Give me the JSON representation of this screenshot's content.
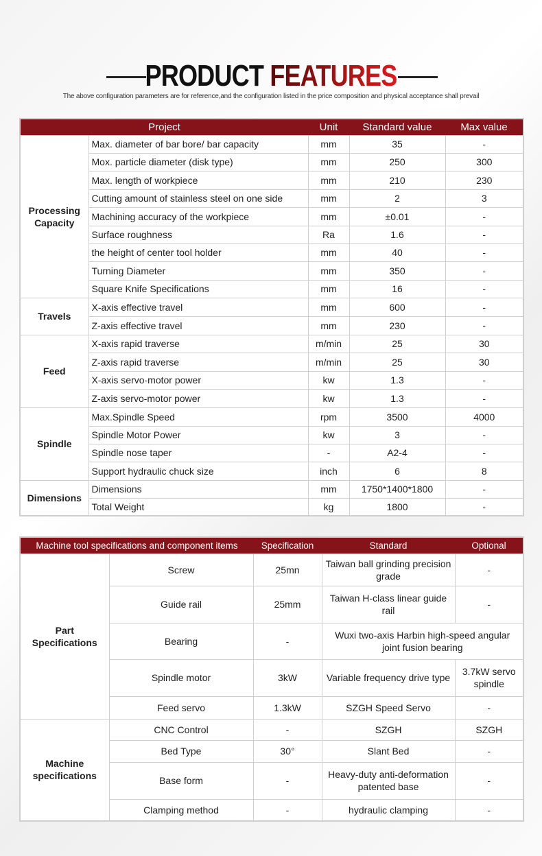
{
  "header": {
    "title_part1": "PRODUCT",
    "title_part2": "FEATURES",
    "subtitle": "The above configuration parameters are for reference,and the configuration listed in the price composition and physical acceptance shall prevail"
  },
  "colors": {
    "header_bg": "#86131a",
    "border": "#cfcfcf"
  },
  "table1": {
    "headers": [
      "Project",
      "Unit",
      "Standard value",
      "Max value"
    ],
    "groups": [
      {
        "name": "Processing Capacity",
        "rows": [
          [
            "Max. diameter of bar bore/ bar capacity",
            "mm",
            "35",
            "-"
          ],
          [
            "Mox. particle diameter (disk type)",
            "mm",
            "250",
            "300"
          ],
          [
            "Max. length of workpiece",
            "mm",
            "210",
            "230"
          ],
          [
            "Cutting amount of stainless steel on one side",
            "mm",
            "2",
            "3"
          ],
          [
            "Machining accuracy of the workpiece",
            "mm",
            "±0.01",
            "-"
          ],
          [
            "Surface roughness",
            "Ra",
            "1.6",
            "-"
          ],
          [
            "the height of center tool holder",
            "mm",
            "40",
            "-"
          ],
          [
            "Turning Diameter",
            "mm",
            "350",
            "-"
          ],
          [
            "Square Knife Specifications",
            "mm",
            "16",
            "-"
          ]
        ]
      },
      {
        "name": "Travels",
        "rows": [
          [
            "X-axis effective travel",
            "mm",
            "600",
            "-"
          ],
          [
            "Z-axis effective travel",
            "mm",
            "230",
            "-"
          ]
        ]
      },
      {
        "name": "Feed",
        "rows": [
          [
            "X-axis rapid traverse",
            "m/min",
            "25",
            "30"
          ],
          [
            "Z-axis rapid traverse",
            "m/min",
            "25",
            "30"
          ],
          [
            "X-axis servo-motor power",
            "kw",
            "1.3",
            "-"
          ],
          [
            "Z-axis servo-motor power",
            "kw",
            "1.3",
            "-"
          ]
        ]
      },
      {
        "name": "Spindle",
        "rows": [
          [
            "Max.Spindle Speed",
            "rpm",
            "3500",
            "4000"
          ],
          [
            "Spindle Motor Power",
            "kw",
            "3",
            "-"
          ],
          [
            "Spindle nose taper",
            "-",
            "A2-4",
            "-"
          ],
          [
            "Support hydraulic chuck size",
            "inch",
            "6",
            "8"
          ]
        ]
      },
      {
        "name": "Dimensions",
        "rows": [
          [
            "Dimensions",
            "mm",
            "1750*1400*1800",
            "-"
          ],
          [
            "Total Weight",
            "kg",
            "1800",
            "-"
          ]
        ]
      }
    ]
  },
  "table2": {
    "headers": [
      "Machine tool specifications and component items",
      "Specification",
      "Standard",
      "Optional"
    ],
    "groups": [
      {
        "name": "Part Specifications",
        "rows": [
          [
            "Screw",
            "25mn",
            "Taiwan ball grinding precision grade",
            "-"
          ],
          [
            "Guide rail",
            "25mm",
            "Taiwan H-class linear guide rail",
            "-"
          ],
          [
            "Bearing",
            "-",
            "Wuxi two-axis Harbin high-speed angular joint fusion bearing",
            null
          ],
          [
            "Spindle motor",
            "3kW",
            "Variable frequency drive type",
            "3.7kW servo spindle"
          ],
          [
            "Feed servo",
            "1.3kW",
            "SZGH Speed Servo",
            "-"
          ]
        ]
      },
      {
        "name": "Machine specifications",
        "rows": [
          [
            "CNC Control",
            "-",
            "SZGH",
            "SZGH"
          ],
          [
            "Bed Type",
            "30°",
            "Slant Bed",
            "-"
          ],
          [
            "Base form",
            "-",
            "Heavy-duty anti-deformation patented base",
            "-"
          ],
          [
            "Clamping method",
            "-",
            "hydraulic clamping",
            "-"
          ]
        ]
      }
    ]
  }
}
